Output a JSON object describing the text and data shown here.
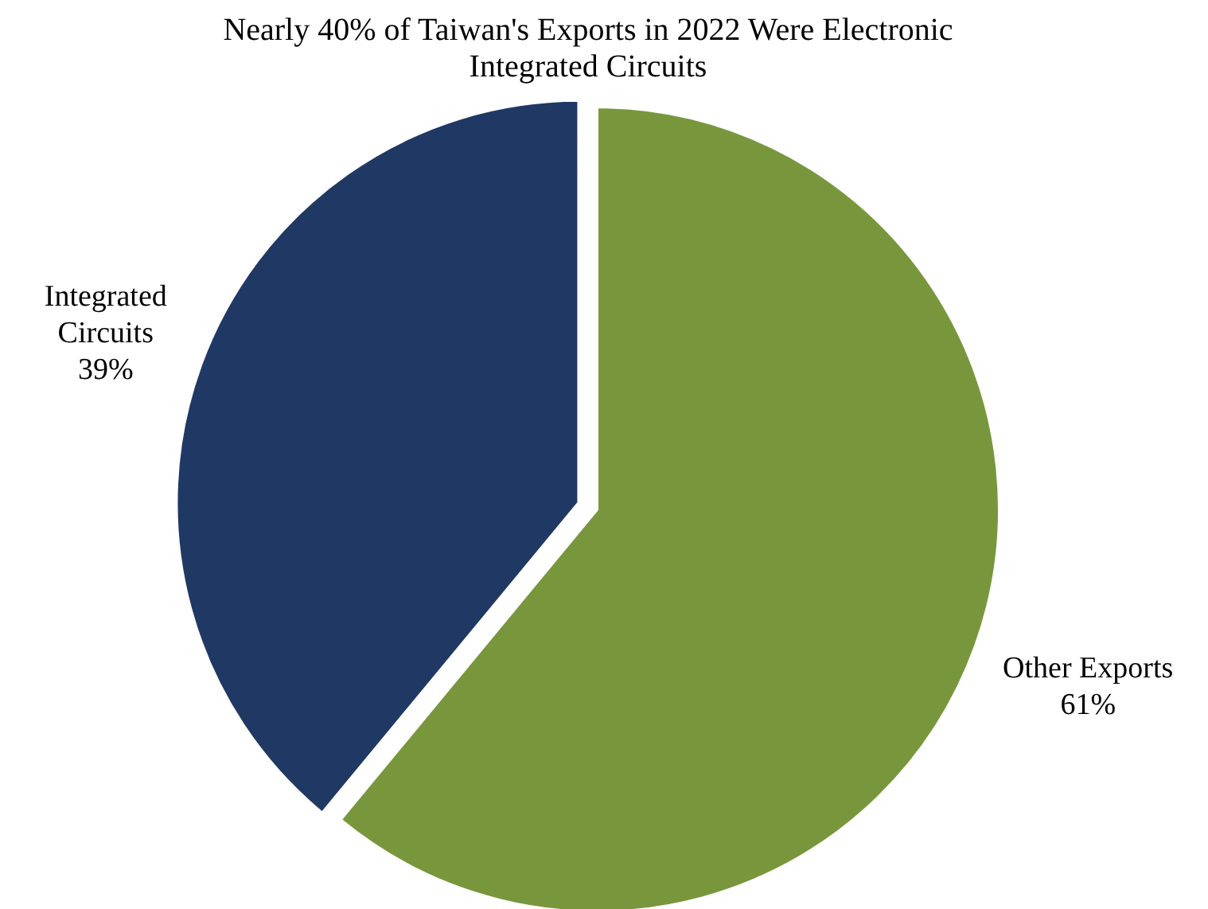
{
  "chart_data": {
    "type": "pie",
    "title": "Nearly 40% of Taiwan's Exports in 2022 Were Electronic Integrated Circuits",
    "categories": [
      "Other Exports",
      "Integrated Circuits"
    ],
    "values": [
      61,
      39
    ],
    "value_labels": [
      "61%",
      "39%"
    ],
    "colors": [
      "#78973d",
      "#203864"
    ]
  }
}
